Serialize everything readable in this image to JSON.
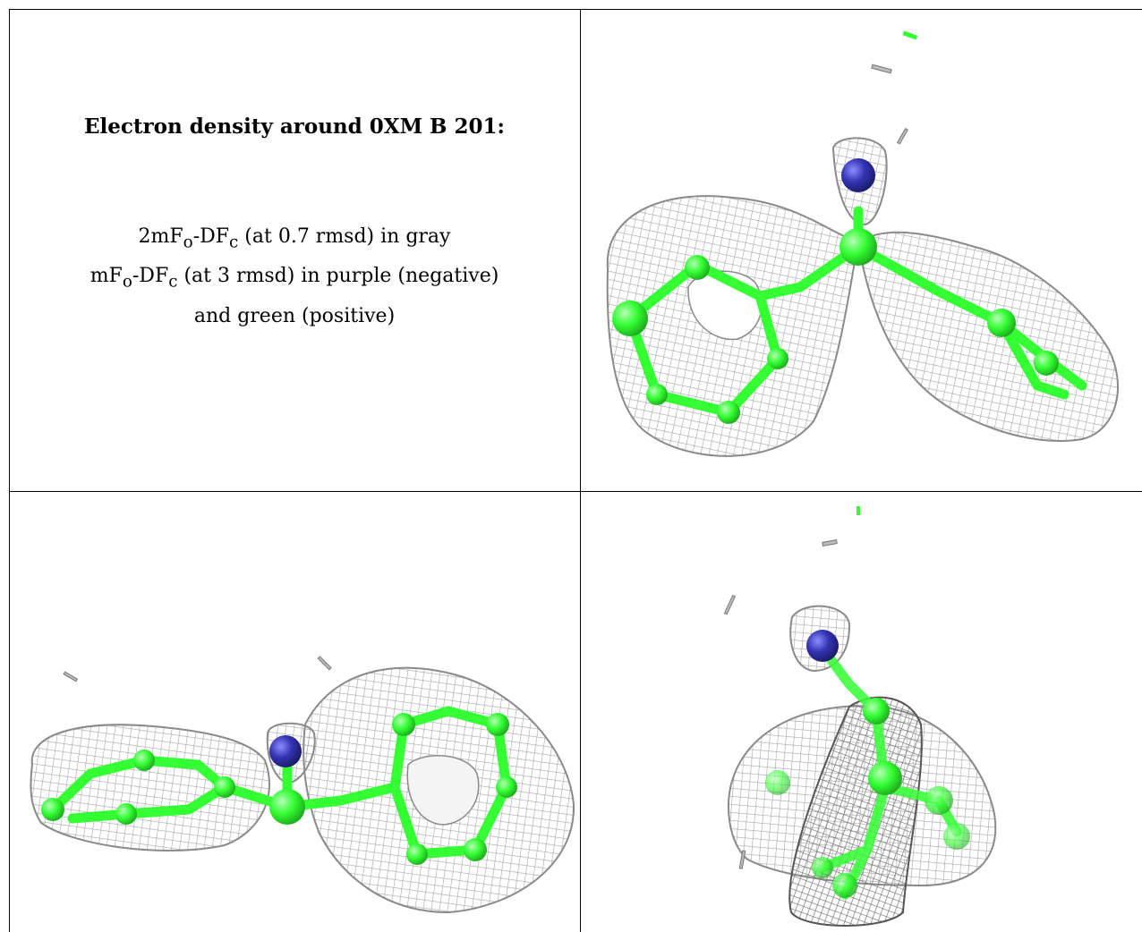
{
  "caption": {
    "title": "Electron density around 0XM B 201:",
    "line1": {
      "a": "2mF",
      "sub1": "o",
      "b": "-DF",
      "sub2": "c",
      "c": " (at 0.7 rmsd) in gray"
    },
    "line2": {
      "a": "mF",
      "sub1": "o",
      "b": "-DF",
      "sub2": "c",
      "c": " (at 3 rmsd) in purple (negative)"
    },
    "line3": "and green (positive)"
  },
  "colors": {
    "mesh": "#a6a6a6",
    "carbon": "#33ff33",
    "nitrogen": "#3333b3"
  },
  "panels": [
    {
      "name": "view-top-right"
    },
    {
      "name": "view-bottom-left"
    },
    {
      "name": "view-bottom-right"
    }
  ]
}
